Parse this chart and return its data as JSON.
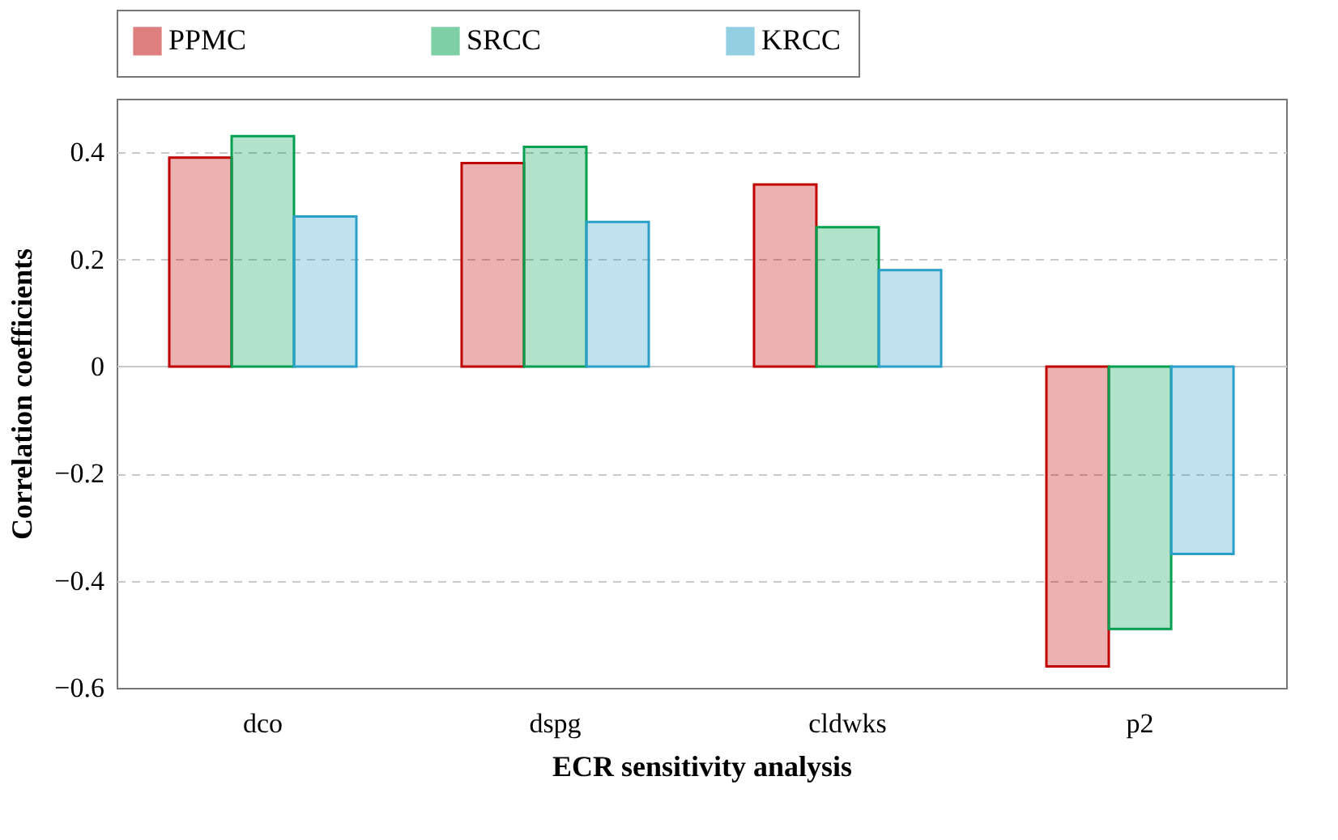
{
  "chart_data": {
    "type": "bar",
    "xlabel": "ECR sensitivity analysis",
    "ylabel": "Correlation coefficients",
    "categories": [
      "dco",
      "dspg",
      "cldwks",
      "p2"
    ],
    "series": [
      {
        "name": "PPMC",
        "color": "#c00000",
        "values": [
          0.39,
          0.38,
          0.34,
          -0.56
        ]
      },
      {
        "name": "SRCC",
        "color": "#00a050",
        "values": [
          0.43,
          0.41,
          0.26,
          -0.49
        ]
      },
      {
        "name": "KRCC",
        "color": "#2aa0c8",
        "values": [
          0.28,
          0.27,
          0.18,
          -0.35
        ]
      }
    ],
    "ylim": [
      -0.6,
      0.5
    ],
    "yticks": [
      -0.6,
      -0.4,
      -0.2,
      0,
      0.2,
      0.4
    ],
    "grid": "y",
    "legend": "top"
  }
}
